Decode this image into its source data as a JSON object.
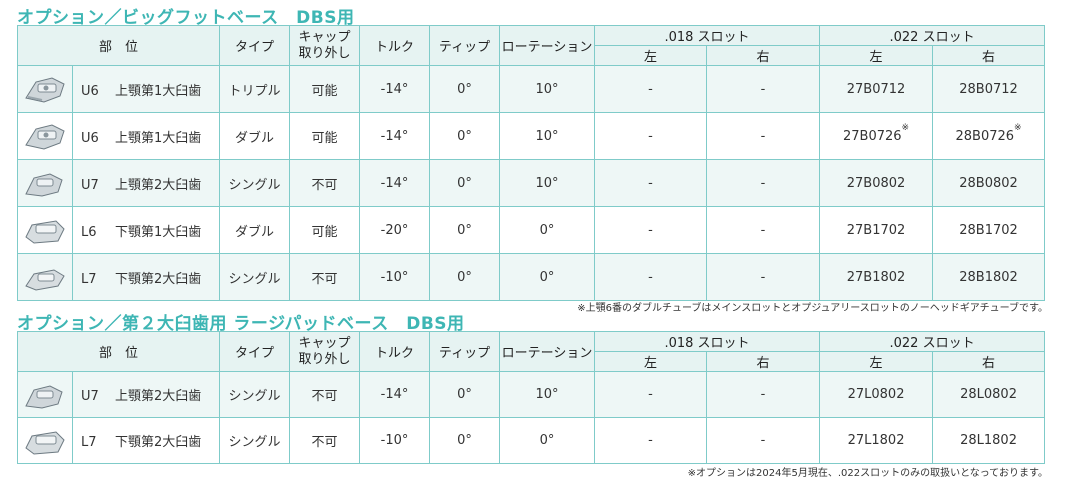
{
  "section1": {
    "heading": "オプション／ビッグフットベース　DBS用",
    "headers": {
      "part": "部　位",
      "type": "タイプ",
      "cap_line1": "キャップ",
      "cap_line2": "取り外し",
      "torque": "トルク",
      "tip": "ティップ",
      "rotation": "ローテーション",
      "slot018": ".018 スロット",
      "slot022": ".022 スロット",
      "left": "左",
      "right": "右"
    },
    "rows": [
      {
        "code": "U6",
        "name": "上顎第1大臼歯",
        "type": "トリプル",
        "cap": "可能",
        "torque": "-14°",
        "tip": "0°",
        "rotation": "10°",
        "s018_left": "-",
        "s018_right": "-",
        "s022_left": "27B0712",
        "s022_right": "28B0712",
        "mark_left": "",
        "mark_right": ""
      },
      {
        "code": "U6",
        "name": "上顎第1大臼歯",
        "type": "ダブル",
        "cap": "可能",
        "torque": "-14°",
        "tip": "0°",
        "rotation": "10°",
        "s018_left": "-",
        "s018_right": "-",
        "s022_left": "27B0726",
        "s022_right": "28B0726",
        "mark_left": "※",
        "mark_right": "※"
      },
      {
        "code": "U7",
        "name": "上顎第2大臼歯",
        "type": "シングル",
        "cap": "不可",
        "torque": "-14°",
        "tip": "0°",
        "rotation": "10°",
        "s018_left": "-",
        "s018_right": "-",
        "s022_left": "27B0802",
        "s022_right": "28B0802",
        "mark_left": "",
        "mark_right": ""
      },
      {
        "code": "L6",
        "name": "下顎第1大臼歯",
        "type": "ダブル",
        "cap": "可能",
        "torque": "-20°",
        "tip": "0°",
        "rotation": "0°",
        "s018_left": "-",
        "s018_right": "-",
        "s022_left": "27B1702",
        "s022_right": "28B1702",
        "mark_left": "",
        "mark_right": ""
      },
      {
        "code": "L7",
        "name": "下顎第2大臼歯",
        "type": "シングル",
        "cap": "不可",
        "torque": "-10°",
        "tip": "0°",
        "rotation": "0°",
        "s018_left": "-",
        "s018_right": "-",
        "s022_left": "27B1802",
        "s022_right": "28B1802",
        "mark_left": "",
        "mark_right": ""
      }
    ],
    "note": "※上顎6番のダブルチューブはメインスロットとオプジュアリースロットのノーヘッドギアチューブです。"
  },
  "section2": {
    "heading": "オプション／第２大臼歯用 ラージパッドベース　DBS用",
    "rows": [
      {
        "code": "U7",
        "name": "上顎第2大臼歯",
        "type": "シングル",
        "cap": "不可",
        "torque": "-14°",
        "tip": "0°",
        "rotation": "10°",
        "s018_left": "-",
        "s018_right": "-",
        "s022_left": "27L0802",
        "s022_right": "28L0802"
      },
      {
        "code": "L7",
        "name": "下顎第2大臼歯",
        "type": "シングル",
        "cap": "不可",
        "torque": "-10°",
        "tip": "0°",
        "rotation": "0°",
        "s018_left": "-",
        "s018_right": "-",
        "s022_left": "27L1802",
        "s022_right": "28L1802"
      }
    ],
    "note": "※オプションは2024年5月現在、.022スロットのみの取扱いとなっております。"
  },
  "icons": [
    "molar-tube-bracket-image"
  ],
  "colors": {
    "accent": "#3eb6b4",
    "border": "#7fcbc9",
    "header_bg": "#e6f3f2",
    "row_alt_bg": "#eef7f6"
  }
}
